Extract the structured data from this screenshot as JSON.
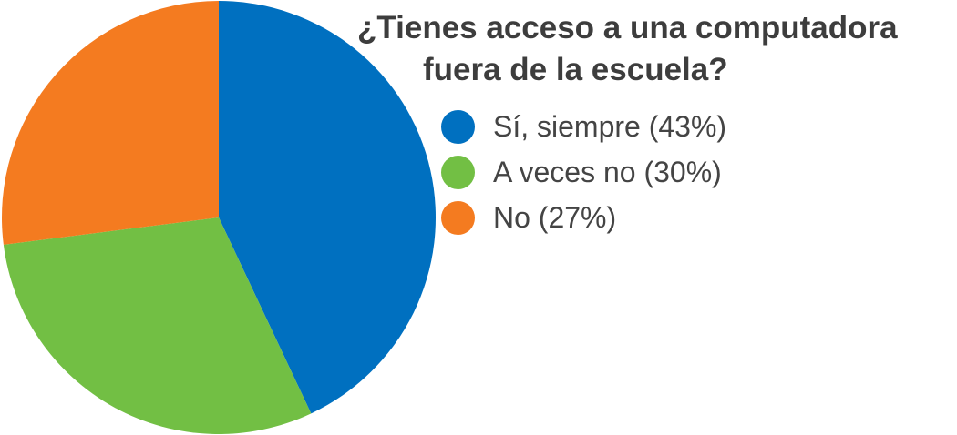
{
  "chart_data": {
    "type": "pie",
    "title_lines": [
      "¿Tienes acceso a una computadora",
      "fuera de la escuela?"
    ],
    "slices": [
      {
        "label": "Sí, siempre (43%)",
        "value": 43,
        "color": "#0070c0"
      },
      {
        "label": "A veces no (30%)",
        "value": 30,
        "color": "#72bf44"
      },
      {
        "label": "No (27%)",
        "value": 27,
        "color": "#f47b20"
      }
    ],
    "start_angle_deg": 0,
    "direction": "clockwise",
    "legend_position": "right"
  }
}
